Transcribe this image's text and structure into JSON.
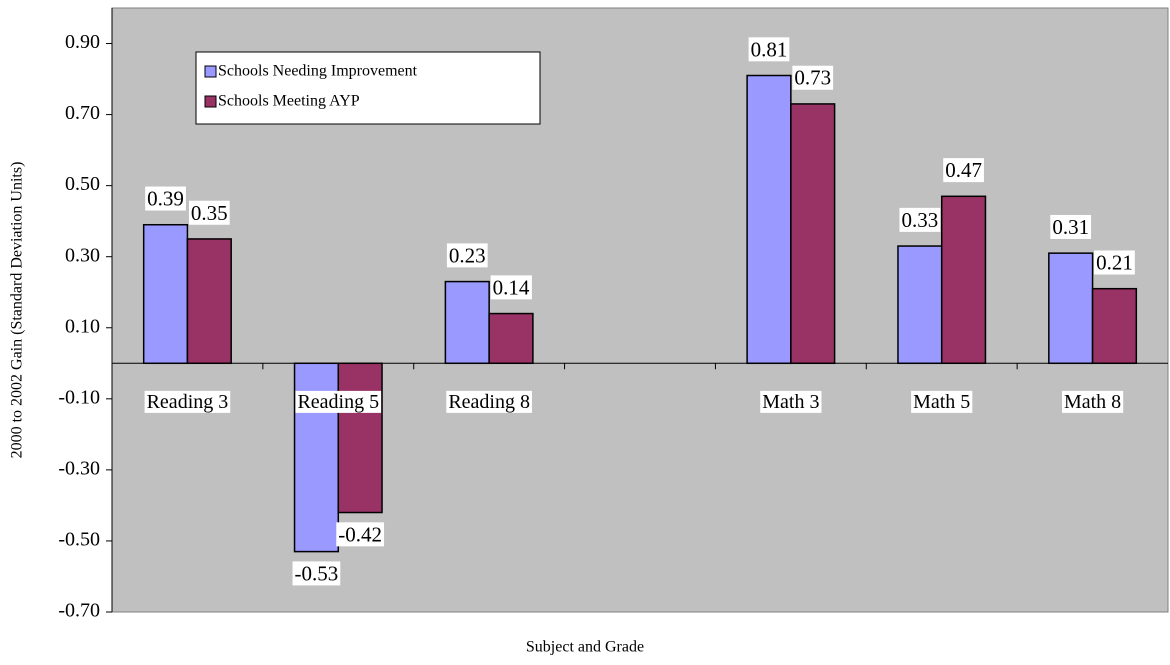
{
  "chart_data": {
    "type": "bar",
    "x_label": "Subject and Grade",
    "y_label": "2000 to 2002 Gain (Standard Deviation Units)",
    "categories": [
      "Reading 3",
      "Reading 5",
      "Reading 8",
      null,
      "Math 3",
      "Math 5",
      "Math 8"
    ],
    "series": [
      {
        "name": "Schools Needing Improvement",
        "color": "#9999ff",
        "values": [
          0.39,
          -0.53,
          0.23,
          null,
          0.81,
          0.33,
          0.31
        ]
      },
      {
        "name": "Schools Meeting AYP",
        "color": "#993366",
        "values": [
          0.35,
          -0.42,
          0.14,
          null,
          0.73,
          0.47,
          0.21
        ]
      }
    ],
    "ylim": [
      -0.7,
      1.0
    ],
    "yticks": [
      {
        "value": -0.7,
        "label": "-0.70"
      },
      {
        "value": -0.5,
        "label": "-0.50"
      },
      {
        "value": -0.3,
        "label": "-0.30"
      },
      {
        "value": -0.1,
        "label": "-0.10"
      },
      {
        "value": 0.1,
        "label": "0.10"
      },
      {
        "value": 0.3,
        "label": "0.30"
      },
      {
        "value": 0.5,
        "label": "0.50"
      },
      {
        "value": 0.7,
        "label": "0.70"
      },
      {
        "value": 0.9,
        "label": "0.90"
      }
    ],
    "grid": false,
    "legend": "upper left",
    "background": "#c0c0c0"
  }
}
